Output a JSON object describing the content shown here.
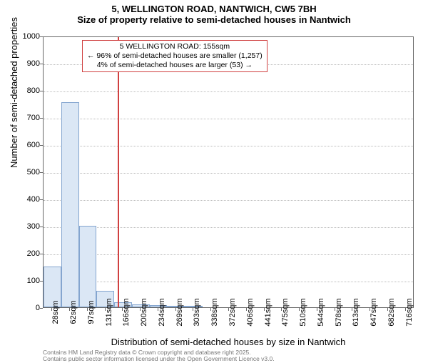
{
  "title_main": "5, WELLINGTON ROAD, NANTWICH, CW5 7BH",
  "title_sub": "Size of property relative to semi-detached houses in Nantwich",
  "ylabel": "Number of semi-detached properties",
  "xlabel": "Distribution of semi-detached houses by size in Nantwich",
  "footer_line1": "Contains HM Land Registry data © Crown copyright and database right 2025.",
  "footer_line2": "Contains public sector information licensed under the Open Government Licence v3.0.",
  "chart": {
    "type": "histogram",
    "background_color": "#ffffff",
    "grid_color": "#bbbbbb",
    "border_color": "#666666",
    "bar_fill": "#dbe7f5",
    "bar_stroke": "#84a5cf",
    "marker_color": "#d04040",
    "ylim": [
      0,
      1000
    ],
    "ytick_step": 100,
    "yticks": [
      0,
      100,
      200,
      300,
      400,
      500,
      600,
      700,
      800,
      900,
      1000
    ],
    "xticks": [
      "28sqm",
      "62sqm",
      "97sqm",
      "131sqm",
      "166sqm",
      "200sqm",
      "234sqm",
      "269sqm",
      "303sqm",
      "338sqm",
      "372sqm",
      "406sqm",
      "441sqm",
      "475sqm",
      "510sqm",
      "544sqm",
      "578sqm",
      "613sqm",
      "647sqm",
      "682sqm",
      "716sqm"
    ],
    "values": [
      150,
      755,
      300,
      60,
      18,
      10,
      8,
      3,
      2,
      0,
      0,
      0,
      0,
      0,
      0,
      0,
      0,
      0,
      0,
      0,
      0
    ],
    "marker_x": 155,
    "annotation": {
      "line1": "5 WELLINGTON ROAD: 155sqm",
      "line2": "← 96% of semi-detached houses are smaller (1,257)",
      "line3": "4% of semi-detached houses are larger (53) →"
    },
    "title_fontsize": 13,
    "label_fontsize": 13,
    "tick_fontsize": 11,
    "annotation_fontsize": 10.5,
    "footer_fontsize": 8.5
  }
}
